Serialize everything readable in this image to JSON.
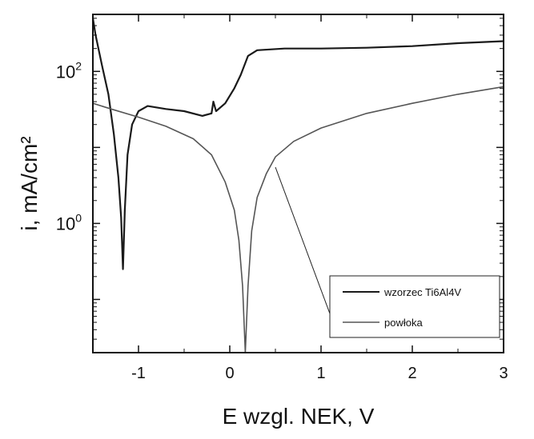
{
  "chart_data": {
    "type": "line",
    "title": "",
    "xlabel": "E wzgl. NEK, V",
    "ylabel": "i, mA/cm²",
    "xlim": [
      -1.5,
      3
    ],
    "ylim_log10": [
      -1.7,
      2.75
    ],
    "y_scale": "log",
    "x_ticks": [
      {
        "value": -1,
        "label": "-1"
      },
      {
        "value": 0,
        "label": "0"
      },
      {
        "value": 1,
        "label": "1"
      },
      {
        "value": 2,
        "label": "2"
      },
      {
        "value": 3,
        "label": "3"
      }
    ],
    "y_major_ticks": [
      {
        "value": 1,
        "label_base": "10",
        "label_exp": "0"
      },
      {
        "value": 100,
        "label_base": "10",
        "label_exp": "2"
      }
    ],
    "grid": false,
    "legend_position": "bottom-right",
    "series": [
      {
        "name": "wzorzec Ti6Al4V",
        "color": "#1a1a1a",
        "points": [
          [
            -1.5,
            500
          ],
          [
            -1.47,
            300
          ],
          [
            -1.4,
            120
          ],
          [
            -1.33,
            50
          ],
          [
            -1.27,
            15
          ],
          [
            -1.22,
            4
          ],
          [
            -1.19,
            1.2
          ],
          [
            -1.17,
            0.25
          ],
          [
            -1.15,
            1.5
          ],
          [
            -1.12,
            8
          ],
          [
            -1.07,
            20
          ],
          [
            -1.0,
            30
          ],
          [
            -0.9,
            35
          ],
          [
            -0.7,
            32
          ],
          [
            -0.5,
            30
          ],
          [
            -0.3,
            26
          ],
          [
            -0.2,
            28
          ],
          [
            -0.18,
            40
          ],
          [
            -0.15,
            30
          ],
          [
            -0.05,
            38
          ],
          [
            0.05,
            60
          ],
          [
            0.12,
            90
          ],
          [
            0.2,
            160
          ],
          [
            0.3,
            190
          ],
          [
            0.6,
            200
          ],
          [
            1.0,
            200
          ],
          [
            1.5,
            205
          ],
          [
            2.0,
            215
          ],
          [
            2.5,
            235
          ],
          [
            3.0,
            250
          ]
        ]
      },
      {
        "name": "powłoka",
        "color": "#555555",
        "points": [
          [
            -1.5,
            38
          ],
          [
            -1.3,
            32
          ],
          [
            -1.0,
            25
          ],
          [
            -0.7,
            19
          ],
          [
            -0.4,
            13
          ],
          [
            -0.2,
            8
          ],
          [
            -0.05,
            3.5
          ],
          [
            0.05,
            1.5
          ],
          [
            0.1,
            0.6
          ],
          [
            0.14,
            0.15
          ],
          [
            0.17,
            0.02
          ],
          [
            0.2,
            0.15
          ],
          [
            0.24,
            0.8
          ],
          [
            0.3,
            2.2
          ],
          [
            0.4,
            4.5
          ],
          [
            0.5,
            7.5
          ],
          [
            0.7,
            12
          ],
          [
            1.0,
            18
          ],
          [
            1.5,
            28
          ],
          [
            2.0,
            38
          ],
          [
            2.5,
            50
          ],
          [
            3.0,
            63
          ]
        ]
      }
    ],
    "annotation_lines": [
      {
        "from": [
          0.5,
          5.5
        ],
        "to": [
          1.18,
          0.035
        ]
      }
    ]
  }
}
